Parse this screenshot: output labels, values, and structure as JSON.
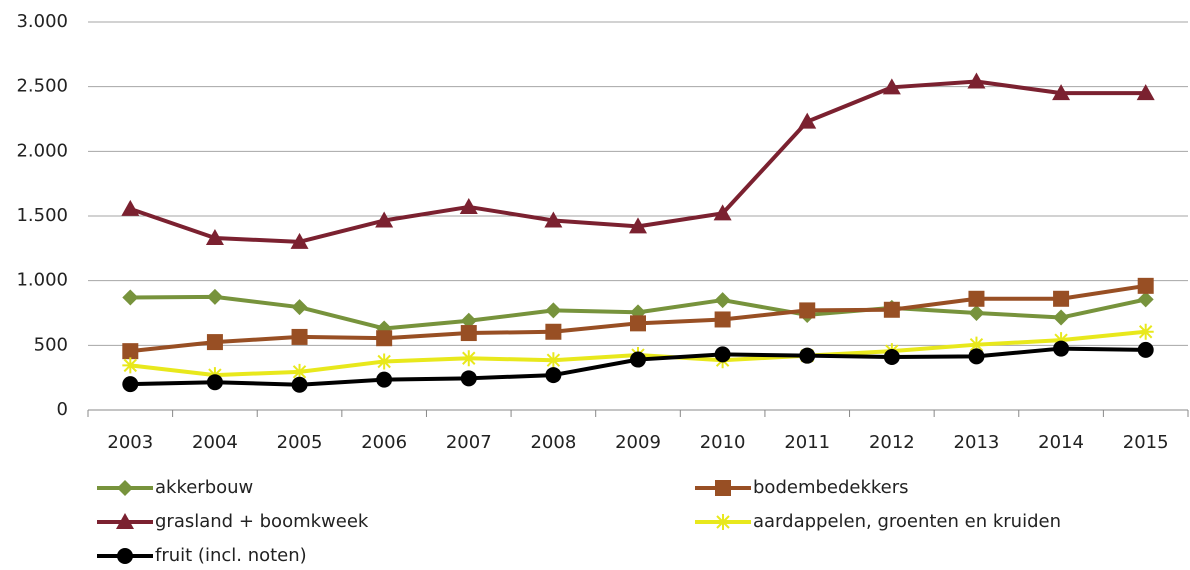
{
  "chart_data": {
    "type": "line",
    "categories": [
      "2003",
      "2004",
      "2005",
      "2006",
      "2007",
      "2008",
      "2009",
      "2010",
      "2011",
      "2012",
      "2013",
      "2014",
      "2015"
    ],
    "ylim": [
      0,
      3000
    ],
    "yticks": [
      0,
      500,
      {
        "value": 1000,
        "label": "1.000"
      },
      {
        "value": 1500,
        "label": "1.500"
      },
      {
        "value": 2000,
        "label": "2.000"
      },
      {
        "value": 2500,
        "label": "2.500"
      },
      {
        "value": 3000,
        "label": "3.000"
      }
    ],
    "grid": true,
    "series": [
      {
        "name": "akkerbouw",
        "color": "#77933c",
        "marker": "diamond",
        "values": [
          870,
          875,
          795,
          630,
          690,
          770,
          755,
          850,
          735,
          790,
          750,
          715,
          855
        ]
      },
      {
        "name": "bodembedekkers",
        "color": "#984f24",
        "marker": "square",
        "values": [
          455,
          525,
          565,
          555,
          595,
          605,
          670,
          700,
          770,
          775,
          860,
          860,
          960
        ]
      },
      {
        "name": "grasland + boomkweek",
        "color": "#7b2130",
        "marker": "triangle",
        "values": [
          1555,
          1330,
          1300,
          1465,
          1570,
          1465,
          1420,
          1520,
          2230,
          2495,
          2540,
          2450,
          2450
        ]
      },
      {
        "name": "aardappelen, groenten en kruiden",
        "color": "#e8e81c",
        "marker": "asterisk",
        "values": [
          345,
          270,
          295,
          375,
          400,
          385,
          425,
          385,
          420,
          455,
          505,
          540,
          605
        ]
      },
      {
        "name": "fruit (incl. noten)",
        "color": "#000000",
        "marker": "circle",
        "values": [
          200,
          215,
          195,
          235,
          245,
          270,
          390,
          430,
          420,
          410,
          415,
          475,
          465
        ]
      }
    ]
  }
}
